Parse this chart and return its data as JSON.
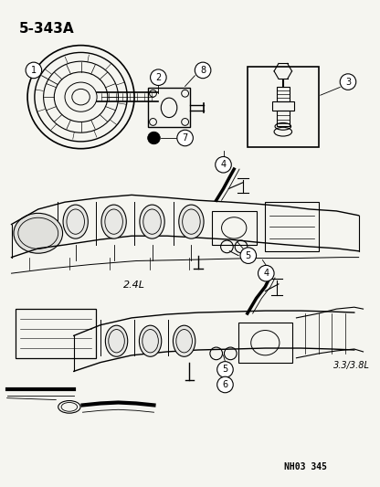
{
  "bg_color": "#f5f5f0",
  "title": "5-343A",
  "footer": "NH03 345",
  "label_2_4L": "2.4L",
  "label_33_38L": "3.3/3.8L",
  "figsize": [
    4.16,
    5.33
  ],
  "dpi": 100
}
